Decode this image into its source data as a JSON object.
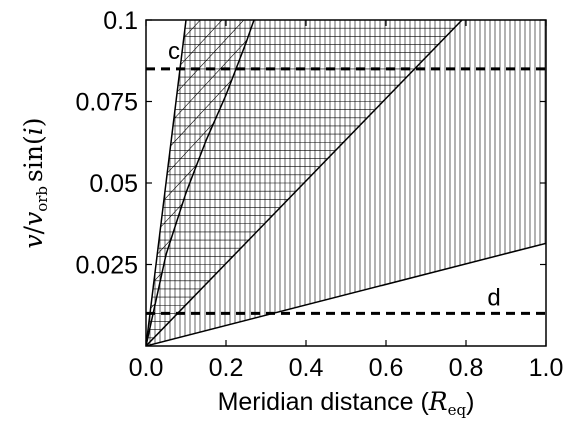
{
  "chart_data": {
    "type": "line",
    "title": "",
    "xlabel": "Meridian distance (R_eq)",
    "xlabel_text": "Meridian distance (",
    "xlabel_symbol": "R",
    "xlabel_subscript": "eq",
    "xlabel_close": ")",
    "ylabel": "v/v_orb sin(i)",
    "ylabel_v": "v",
    "ylabel_slash": "/",
    "ylabel_v2": "v",
    "ylabel_sub": "orb",
    "ylabel_sin": "sin(",
    "ylabel_i": "i",
    "ylabel_close": ")",
    "xlim": [
      0,
      1
    ],
    "ylim": [
      0,
      0.1
    ],
    "x_ticks": [
      0.0,
      0.2,
      0.4,
      0.6,
      0.8,
      1.0
    ],
    "x_tick_labels": [
      "0.0",
      "0.2",
      "0.4",
      "0.6",
      "0.8",
      "1.0"
    ],
    "y_ticks": [
      0.025,
      0.05,
      0.075,
      0.1
    ],
    "y_tick_labels": [
      "0.025",
      "0.05",
      "0.075",
      "0.1"
    ],
    "grid": false,
    "lines": [
      {
        "type": "linear",
        "x": [
          0,
          0.1
        ],
        "y": [
          0,
          0.1
        ]
      },
      {
        "type": "curve",
        "x": [
          0,
          0.05,
          0.1,
          0.15,
          0.2,
          0.25,
          0.27
        ],
        "y": [
          0,
          0.028,
          0.047,
          0.063,
          0.077,
          0.093,
          0.1
        ]
      },
      {
        "type": "linear",
        "x": [
          0,
          0.79
        ],
        "y": [
          0,
          0.1
        ]
      },
      {
        "type": "linear",
        "x": [
          0,
          1.0
        ],
        "y": [
          0,
          0.0315
        ]
      }
    ],
    "hlines": [
      {
        "y": 0.085,
        "style": "dashed",
        "label": "c"
      },
      {
        "y": 0.01,
        "style": "dashed",
        "label": "d"
      }
    ],
    "hatched_regions": [
      {
        "hatch": "diagonal",
        "bounds": "between steepest line and curve"
      },
      {
        "hatch": "horizontal",
        "bounds": "between steepest line and third line"
      },
      {
        "hatch": "vertical",
        "bounds": "between steepest line and lowest line"
      }
    ],
    "annotations": [
      {
        "text": "c",
        "x": 0.07,
        "y": 0.088
      },
      {
        "text": "d",
        "x": 0.87,
        "y": 0.0125
      }
    ]
  }
}
